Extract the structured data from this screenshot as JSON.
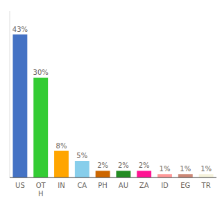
{
  "chart_data": {
    "type": "bar",
    "categories": [
      "US",
      "OT\nH",
      "IN",
      "CA",
      "PH",
      "AU",
      "ZA",
      "ID",
      "EG",
      "TR"
    ],
    "values": [
      43,
      30,
      8,
      5,
      2,
      2,
      2,
      1,
      1,
      1
    ],
    "value_labels": [
      "43%",
      "30%",
      "8%",
      "5%",
      "2%",
      "2%",
      "2%",
      "1%",
      "1%",
      "1%"
    ],
    "colors": [
      "#4472C4",
      "#33CC33",
      "#FFA500",
      "#87CEEB",
      "#CC6600",
      "#228B22",
      "#FF1493",
      "#FF9999",
      "#CC8877",
      "#F5F2DC"
    ],
    "ylim": [
      0,
      50
    ],
    "data_labels": true,
    "tick_labels": "x",
    "grid": false
  }
}
